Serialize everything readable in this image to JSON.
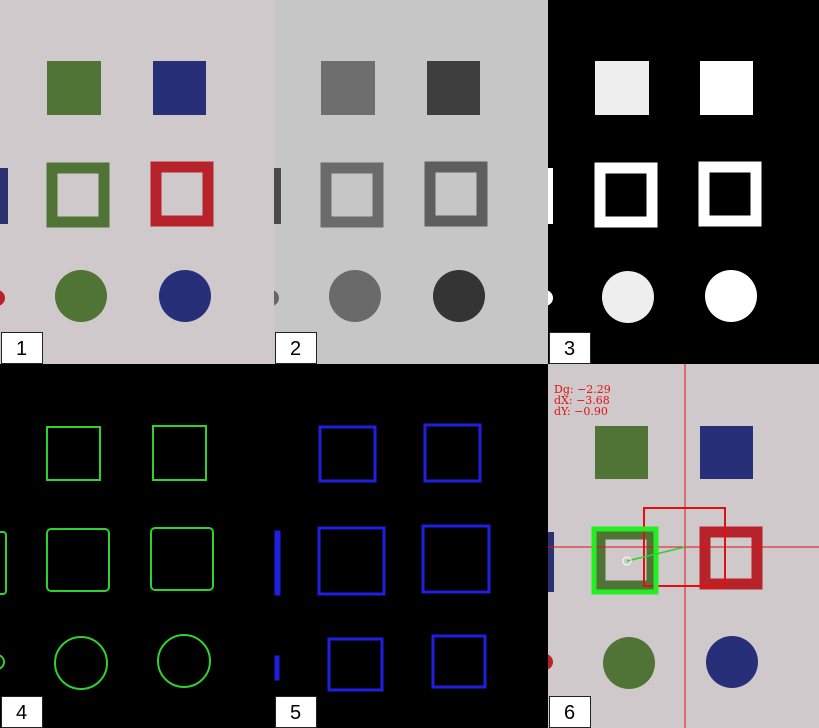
{
  "panels": [
    {
      "id": "1",
      "label": "1",
      "mode": "original"
    },
    {
      "id": "2",
      "label": "2",
      "mode": "grayscale"
    },
    {
      "id": "3",
      "label": "3",
      "mode": "binary"
    },
    {
      "id": "4",
      "label": "4",
      "mode": "contours-green"
    },
    {
      "id": "5",
      "label": "5",
      "mode": "bounding-boxes-blue"
    },
    {
      "id": "6",
      "label": "6",
      "mode": "tracking-overlay"
    }
  ],
  "readout": {
    "dg": "Dg: −2.29",
    "dx": "dX: −3.68",
    "dy": "dY: −0.90"
  },
  "colors": {
    "paper": "#cfc9cc",
    "gray_paper": "#c6c6c6",
    "green_shape": "#4f7436",
    "blue_shape": "#262f78",
    "red_shape": "#b8222a",
    "contour": "#2fd12f",
    "bbox": "#1f1fe0",
    "overlay_red": "#e01010"
  }
}
